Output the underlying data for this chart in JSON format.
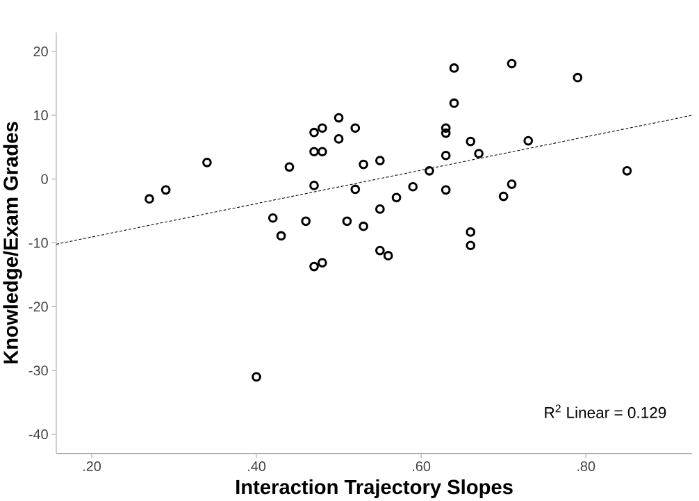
{
  "chart_data": {
    "type": "scatter",
    "xlabel": "Interaction Trajectory Slopes",
    "ylabel": "Knowledge/Exam Grades",
    "xlim": [
      0.157,
      0.929
    ],
    "ylim": [
      -43,
      23
    ],
    "xticks": [
      {
        "value": 0.2,
        "label": ".20"
      },
      {
        "value": 0.4,
        "label": ".40"
      },
      {
        "value": 0.6,
        "label": ".60"
      },
      {
        "value": 0.8,
        "label": ".80"
      }
    ],
    "yticks": [
      -40,
      -30,
      -20,
      -10,
      0,
      10,
      20
    ],
    "grid": false,
    "series": [
      {
        "marker": "circle",
        "color": "#000000",
        "x": [
          0.27,
          0.29,
          0.34,
          0.44,
          0.47,
          0.48,
          0.5,
          0.52,
          0.5,
          0.47,
          0.48,
          0.53,
          0.55,
          0.47,
          0.52,
          0.57,
          0.55,
          0.42,
          0.46,
          0.51,
          0.53,
          0.43,
          0.55,
          0.56,
          0.47,
          0.48,
          0.64,
          0.71,
          0.79,
          0.64,
          0.63,
          0.63,
          0.66,
          0.73,
          0.67,
          0.63,
          0.61,
          0.85,
          0.59,
          0.63,
          0.71,
          0.7,
          0.66,
          0.66,
          0.4
        ],
        "values": [
          -3.1,
          -1.7,
          2.6,
          1.9,
          7.3,
          8.0,
          9.6,
          8.0,
          6.3,
          4.3,
          4.3,
          2.3,
          2.9,
          -1.0,
          -1.6,
          -2.9,
          -4.7,
          -6.1,
          -6.6,
          -6.6,
          -7.4,
          -8.9,
          -11.2,
          -12.0,
          -13.7,
          -13.1,
          17.4,
          18.1,
          15.9,
          11.9,
          8.0,
          7.2,
          5.9,
          6.0,
          4.0,
          3.7,
          1.3,
          1.3,
          -1.2,
          -1.7,
          -0.8,
          -2.7,
          -8.3,
          -10.4,
          -31.0
        ]
      },
      {
        "type": "line",
        "line_style": "dashed",
        "color": "#000000",
        "x": [
          0.157,
          0.929
        ],
        "values": [
          -10.2,
          10.0
        ]
      }
    ],
    "annotations": [
      "R$^{2}$ Linear = 0.129"
    ]
  }
}
